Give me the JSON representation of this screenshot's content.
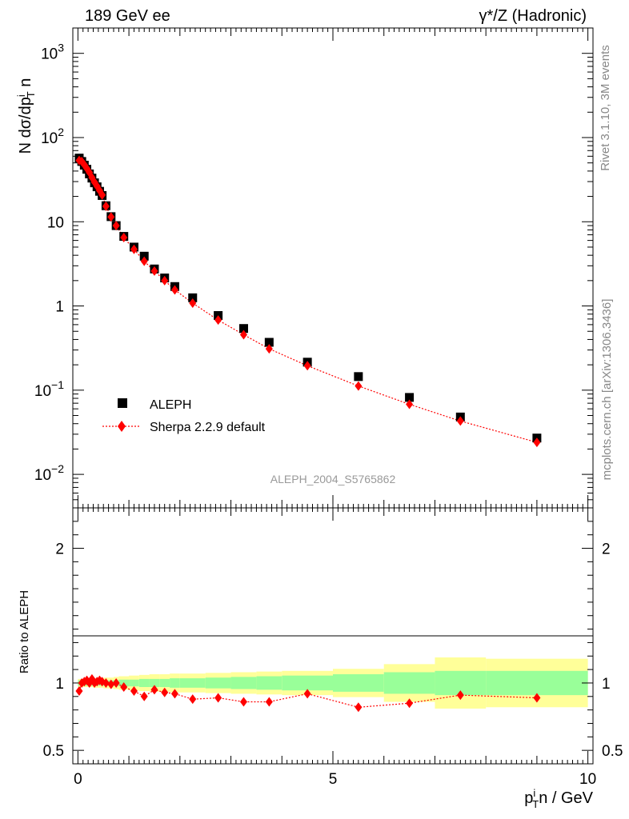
{
  "header": {
    "left": "189 GeV ee",
    "right": "γ*/Z (Hadronic)"
  },
  "side_labels": {
    "rivet": "Rivet 3.1.10,  3M events",
    "mcplots": "mcplots.cern.ch [arXiv:1306.3436]"
  },
  "analysis_id": "ALEPH_2004_S5765862",
  "colors": {
    "data": "#000000",
    "mc": "#ff0000",
    "band_inner": "#99ff99",
    "band_outer": "#ffff99"
  },
  "legend": [
    {
      "label": "ALEPH"
    },
    {
      "label": "Sherpa 2.2.9 default"
    }
  ],
  "chart_data": [
    {
      "type": "scatter",
      "panel": "main",
      "title": "189 GeV ee",
      "ylabel": "N dσ/dp_T^i n",
      "yscale": "log",
      "ylim": [
        0.004,
        2000
      ],
      "xlim": [
        -0.1,
        10.1
      ],
      "ytick_labels": [
        "10^-2",
        "10^-1",
        "1",
        "10",
        "10^2",
        "10^3"
      ],
      "series": [
        {
          "name": "ALEPH",
          "x": [
            0.025,
            0.075,
            0.125,
            0.175,
            0.225,
            0.275,
            0.325,
            0.375,
            0.425,
            0.475,
            0.55,
            0.65,
            0.75,
            0.9,
            1.1,
            1.3,
            1.5,
            1.7,
            1.9,
            2.25,
            2.75,
            3.25,
            3.75,
            4.5,
            5.5,
            6.5,
            7.5,
            9.0
          ],
          "values": [
            57,
            52,
            47,
            42,
            37,
            33,
            29,
            26,
            23,
            20.5,
            15.5,
            11.5,
            9.0,
            6.7,
            5.0,
            3.9,
            2.75,
            2.15,
            1.7,
            1.25,
            0.77,
            0.54,
            0.37,
            0.215,
            0.145,
            0.082,
            0.048,
            0.027
          ]
        },
        {
          "name": "Sherpa 2.2.9 default",
          "x": [
            0.025,
            0.075,
            0.125,
            0.175,
            0.225,
            0.275,
            0.325,
            0.375,
            0.425,
            0.475,
            0.55,
            0.65,
            0.75,
            0.9,
            1.1,
            1.3,
            1.5,
            1.7,
            1.9,
            2.25,
            2.75,
            3.25,
            3.75,
            4.5,
            5.5,
            6.5,
            7.5,
            9.0
          ],
          "values": [
            53.5,
            52,
            47.5,
            43,
            38.5,
            33.5,
            29.5,
            26.5,
            23.5,
            20.8,
            15.3,
            11.4,
            9.0,
            6.5,
            4.7,
            3.4,
            2.6,
            2.0,
            1.55,
            1.08,
            0.68,
            0.455,
            0.31,
            0.195,
            0.112,
            0.068,
            0.043,
            0.024
          ]
        }
      ]
    },
    {
      "type": "line",
      "panel": "ratio",
      "ylabel": "Ratio to ALEPH",
      "xlabel": "p_T^i n / GeV",
      "xlim": [
        -0.1,
        10.1
      ],
      "ylim": [
        0.4,
        2.3
      ],
      "xtick_labels": [
        "0",
        "5",
        "10"
      ],
      "ytick_labels": [
        "0.5",
        "1",
        "2"
      ],
      "bands": [
        {
          "xlo": 0.0,
          "xhi": 0.1,
          "inner": 0.02,
          "outer": 0.03
        },
        {
          "xlo": 0.1,
          "xhi": 0.2,
          "inner": 0.02,
          "outer": 0.03
        },
        {
          "xlo": 0.2,
          "xhi": 0.3,
          "inner": 0.02,
          "outer": 0.03
        },
        {
          "xlo": 0.3,
          "xhi": 0.4,
          "inner": 0.02,
          "outer": 0.035
        },
        {
          "xlo": 0.4,
          "xhi": 0.5,
          "inner": 0.02,
          "outer": 0.035
        },
        {
          "xlo": 0.5,
          "xhi": 0.6,
          "inner": 0.02,
          "outer": 0.04
        },
        {
          "xlo": 0.6,
          "xhi": 0.7,
          "inner": 0.02,
          "outer": 0.04
        },
        {
          "xlo": 0.7,
          "xhi": 0.8,
          "inner": 0.02,
          "outer": 0.045
        },
        {
          "xlo": 0.8,
          "xhi": 1.0,
          "inner": 0.025,
          "outer": 0.05
        },
        {
          "xlo": 1.0,
          "xhi": 1.2,
          "inner": 0.025,
          "outer": 0.055
        },
        {
          "xlo": 1.2,
          "xhi": 1.4,
          "inner": 0.03,
          "outer": 0.06
        },
        {
          "xlo": 1.4,
          "xhi": 1.6,
          "inner": 0.03,
          "outer": 0.065
        },
        {
          "xlo": 1.6,
          "xhi": 1.8,
          "inner": 0.03,
          "outer": 0.065
        },
        {
          "xlo": 1.8,
          "xhi": 2.0,
          "inner": 0.035,
          "outer": 0.07
        },
        {
          "xlo": 2.0,
          "xhi": 2.5,
          "inner": 0.035,
          "outer": 0.07
        },
        {
          "xlo": 2.5,
          "xhi": 3.0,
          "inner": 0.04,
          "outer": 0.075
        },
        {
          "xlo": 3.0,
          "xhi": 3.5,
          "inner": 0.045,
          "outer": 0.08
        },
        {
          "xlo": 3.5,
          "xhi": 4.0,
          "inner": 0.05,
          "outer": 0.085
        },
        {
          "xlo": 4.0,
          "xhi": 5.0,
          "inner": 0.055,
          "outer": 0.09
        },
        {
          "xlo": 5.0,
          "xhi": 6.0,
          "inner": 0.065,
          "outer": 0.105
        },
        {
          "xlo": 6.0,
          "xhi": 7.0,
          "inner": 0.08,
          "outer": 0.14
        },
        {
          "xlo": 7.0,
          "xhi": 8.0,
          "inner": 0.09,
          "outer": 0.19
        },
        {
          "xlo": 8.0,
          "xhi": 10.0,
          "inner": 0.09,
          "outer": 0.18
        }
      ],
      "series": [
        {
          "name": "Sherpa 2.2.9 default",
          "x": [
            0.025,
            0.075,
            0.125,
            0.175,
            0.225,
            0.275,
            0.325,
            0.375,
            0.425,
            0.475,
            0.55,
            0.65,
            0.75,
            0.9,
            1.1,
            1.3,
            1.5,
            1.7,
            1.9,
            2.25,
            2.75,
            3.25,
            3.75,
            4.5,
            5.5,
            6.5,
            7.5,
            9.0
          ],
          "values": [
            0.94,
            1.0,
            1.01,
            1.02,
            1.0,
            1.03,
            1.0,
            1.01,
            1.02,
            1.01,
            1.0,
            0.99,
            1.0,
            0.97,
            0.94,
            0.9,
            0.95,
            0.93,
            0.92,
            0.88,
            0.89,
            0.86,
            0.86,
            0.92,
            0.82,
            0.85,
            0.91,
            0.89
          ]
        }
      ]
    }
  ]
}
